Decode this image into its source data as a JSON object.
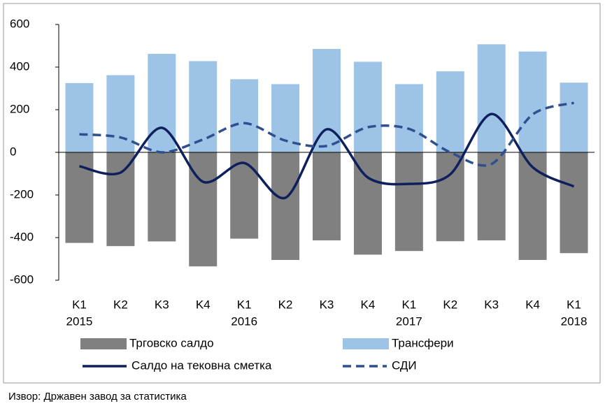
{
  "chart_data": {
    "type": "bar-line",
    "categories": [
      [
        "K1",
        "2015"
      ],
      [
        "K2"
      ],
      [
        "K3"
      ],
      [
        "K4"
      ],
      [
        "K1",
        "2016"
      ],
      [
        "K2"
      ],
      [
        "K3"
      ],
      [
        "K4"
      ],
      [
        "K1",
        "2017"
      ],
      [
        "K2"
      ],
      [
        "K3"
      ],
      [
        "K4"
      ],
      [
        "K1",
        "2018"
      ]
    ],
    "series": [
      {
        "name": "Трговско салдо",
        "type": "bar",
        "color": "#808080",
        "values": [
          -425,
          -440,
          -418,
          -535,
          -405,
          -505,
          -413,
          -480,
          -463,
          -417,
          -413,
          -505,
          -473
        ]
      },
      {
        "name": "Трансфери",
        "type": "bar",
        "color": "#9dc3e6",
        "values": [
          325,
          362,
          462,
          428,
          343,
          320,
          485,
          425,
          320,
          380,
          507,
          473,
          327
        ]
      },
      {
        "name": "Салдо на тековна сметка",
        "type": "line",
        "color": "#0d1f5c",
        "dash": false,
        "values": [
          -65,
          -95,
          115,
          -138,
          -50,
          -213,
          108,
          -118,
          -148,
          -103,
          180,
          -70,
          -160
        ]
      },
      {
        "name": "СДИ",
        "type": "line",
        "color": "#2f4f8f",
        "dash": true,
        "values": [
          85,
          70,
          0,
          60,
          137,
          55,
          30,
          118,
          110,
          0,
          -55,
          178,
          232
        ]
      }
    ],
    "ylim": [
      -600,
      600
    ],
    "yticks": [
      600,
      400,
      200,
      0,
      -200,
      -400,
      -600
    ],
    "source": "Извор: Државен завод за статистика"
  }
}
